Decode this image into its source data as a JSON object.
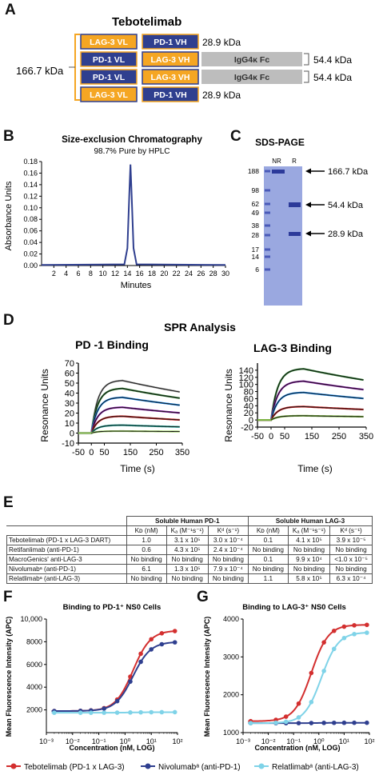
{
  "panel_letters": {
    "a": "A",
    "b": "B",
    "c": "C",
    "d": "D",
    "e": "E",
    "f": "F",
    "g": "G"
  },
  "panelA": {
    "title": "Tebotelimab",
    "total_mass": "166.7 kDa",
    "rows": [
      {
        "chain1": "LAG-3 VL",
        "chain2": "PD-1 VH",
        "fc": "",
        "mass": "28.9 kDa"
      },
      {
        "chain1": "PD-1 VL",
        "chain2": "LAG-3 VH",
        "fc": "IgG4κ Fc",
        "mass": "54.4 kDa"
      },
      {
        "chain1": "PD-1 VL",
        "chain2": "LAG-3 VH",
        "fc": "IgG4κ Fc",
        "mass": "54.4 kDa"
      },
      {
        "chain1": "LAG-3 VL",
        "chain2": "PD-1 VH",
        "fc": "",
        "mass": "28.9 kDa"
      }
    ],
    "colors": {
      "lag3": "#f5a623",
      "pd1": "#2f3f8f",
      "fc": "#bdbdbd"
    }
  },
  "chart_data": [
    {
      "id": "B",
      "type": "line",
      "title": "Size-exclusion Chromatography",
      "subtitle": "98.7% Pure by HPLC",
      "xlabel": "Minutes",
      "ylabel": "Absorbance Units",
      "xlim": [
        0,
        30
      ],
      "ylim": [
        0,
        0.18
      ],
      "xticks": [
        2,
        4,
        6,
        8,
        10,
        12,
        14,
        16,
        18,
        20,
        22,
        24,
        26,
        28,
        30
      ],
      "yticks": [
        0.0,
        0.02,
        0.04,
        0.06,
        0.08,
        0.1,
        0.12,
        0.14,
        0.16,
        0.18
      ],
      "ytick_labels": [
        "0.00",
        "0.02",
        "0.04",
        "0.06",
        "0.08",
        "0.10",
        "0.12",
        "0.14",
        "0.16",
        "0.18"
      ],
      "series": [
        {
          "x": [
            0,
            13.5,
            14.0,
            14.3,
            14.5,
            14.7,
            15.0,
            15.5,
            30
          ],
          "y": [
            0.001,
            0.002,
            0.03,
            0.12,
            0.175,
            0.12,
            0.03,
            0.002,
            0.001
          ]
        }
      ],
      "color": "#2f3f8f"
    },
    {
      "id": "C",
      "type": "gel",
      "title": "SDS-PAGE",
      "lanes": [
        "NR",
        "R"
      ],
      "markers": [
        "188",
        "98",
        "62",
        "49",
        "38",
        "28",
        "17",
        "14",
        "6"
      ],
      "bands": [
        "166.7  kDa",
        "54.4  kDa",
        "28.9  kDa"
      ]
    },
    {
      "id": "D",
      "type": "line",
      "title": "SPR Analysis",
      "panels": [
        {
          "title": "PD -1 Binding",
          "ylabel": "Resonance Units",
          "xlabel": "Time (s)",
          "xlim": [
            -50,
            350
          ],
          "ylim": [
            -10,
            70
          ],
          "xticks": [
            -50,
            0,
            50,
            150,
            250,
            350
          ],
          "yticks": [
            -10,
            0,
            10,
            20,
            30,
            40,
            50,
            60,
            70
          ],
          "plateaus": [
            53,
            45,
            36,
            26,
            17,
            8,
            2
          ],
          "colors": [
            "#9e9e9e",
            "#2e7d32",
            "#1e88e5",
            "#8e24aa",
            "#c62828",
            "#26a69a",
            "#9ccc65"
          ]
        },
        {
          "title": "LAG-3 Binding",
          "ylabel": "Resonance Units",
          "xlabel": "Time (s)",
          "xlim": [
            -50,
            350
          ],
          "ylim": [
            -20,
            160
          ],
          "xticks": [
            -50,
            0,
            50,
            150,
            250,
            350
          ],
          "yticks": [
            -20,
            0,
            20,
            40,
            60,
            80,
            100,
            120,
            140
          ],
          "plateaus": [
            145,
            110,
            78,
            38,
            12
          ],
          "colors": [
            "#2e7d32",
            "#8e24aa",
            "#1e88e5",
            "#c62828",
            "#7cb342"
          ]
        }
      ]
    },
    {
      "id": "F",
      "type": "line",
      "title": "Binding to PD-1⁺ NS0 Cells",
      "ylabel": "Mean Fluorescence Intensity (APC)",
      "xlabel": "Concentration (nM, LOG)",
      "ylim": [
        0,
        10000
      ],
      "yticks": [
        2000,
        4000,
        6000,
        8000,
        10000
      ],
      "ytick_labels": [
        "2000",
        "4000",
        "6000",
        "8000",
        "10,000"
      ],
      "xticks_labels": [
        "10⁻³",
        "10⁻²",
        "10⁻¹",
        "10⁰",
        "10¹",
        "10²"
      ],
      "series": [
        {
          "name": "Tebotelimab",
          "color": "#d32f2f",
          "top": 9000,
          "bottom": 1900,
          "ec50_log": 0.3
        },
        {
          "name": "Nivolumab",
          "color": "#2f3f8f",
          "top": 8000,
          "bottom": 1900,
          "ec50_log": 0.3
        },
        {
          "name": "Relatlimab",
          "color": "#7fd3e8",
          "top": 1800,
          "bottom": 1750,
          "ec50_log": 0.3
        }
      ]
    },
    {
      "id": "G",
      "type": "line",
      "title": "Binding to LAG-3⁺ NS0 Cells",
      "ylabel": "Mean Fluorescence Intensity (APC)",
      "xlabel": "Concentration (nM, LOG)",
      "ylim": [
        1000,
        4000
      ],
      "yticks": [
        1000,
        2000,
        3000,
        4000
      ],
      "ytick_labels": [
        "1000",
        "2000",
        "3000",
        "4000"
      ],
      "xticks_labels": [
        "10⁻³",
        "10⁻²",
        "10⁻¹",
        "10⁰",
        "10¹",
        "10²"
      ],
      "series": [
        {
          "name": "Tebotelimab",
          "color": "#d32f2f",
          "top": 3850,
          "bottom": 1300,
          "ec50_log": -0.3
        },
        {
          "name": "Nivolumab",
          "color": "#2f3f8f",
          "top": 1260,
          "bottom": 1250,
          "ec50_log": 0
        },
        {
          "name": "Relatlimab",
          "color": "#7fd3e8",
          "top": 3650,
          "bottom": 1250,
          "ec50_log": 0.1
        }
      ]
    }
  ],
  "tableE": {
    "group_headers": [
      "Soluble Human PD-1",
      "Soluble Human LAG-3"
    ],
    "sub_headers": [
      "Kᴅ (nM)",
      "Kₐ (M⁻¹s⁻¹)",
      "Kᵈ (s⁻¹)",
      "Kᴅ (nM)",
      "Kₐ (M⁻¹s⁻¹)",
      "Kᵈ (s⁻¹)"
    ],
    "rows": [
      [
        "Tebotelimab (PD-1 x LAG-3 DART)",
        "1.0",
        "3.1 x 10⁵",
        "3.0 x 10⁻⁴",
        "0.1",
        "4.1 x 10⁵",
        "3.9 x 10⁻⁵"
      ],
      [
        "Retifanlimab (anti-PD-1)",
        "0.6",
        "4.3 x 10⁵",
        "2.4 x 10⁻⁴",
        "No binding",
        "No binding",
        "No binding"
      ],
      [
        "MacroGenics' anti-LAG-3",
        "No binding",
        "No binding",
        "No binding",
        "0.1",
        "9.9 x 10⁴",
        "<1.0 x 10⁻⁵"
      ],
      [
        "Nivolumabᵃ (anti-PD-1)",
        "6.1",
        "1.3 x 10⁵",
        "7.9 x 10⁻⁴",
        "No binding",
        "No binding",
        "No binding"
      ],
      [
        "Relatlimabᵃ (anti-LAG-3)",
        "No binding",
        "No binding",
        "No binding",
        "1.1",
        "5.8 x 10⁵",
        "6.3 x 10⁻⁴"
      ]
    ]
  },
  "legend": [
    {
      "label": "Tebotelimab (PD-1 x LAG-3)",
      "color": "#d32f2f"
    },
    {
      "label": "Nivolumabᵃ (anti-PD-1)",
      "color": "#2f3f8f"
    },
    {
      "label": "Relatlimabᵃ (anti-LAG-3)",
      "color": "#7fd3e8"
    }
  ]
}
